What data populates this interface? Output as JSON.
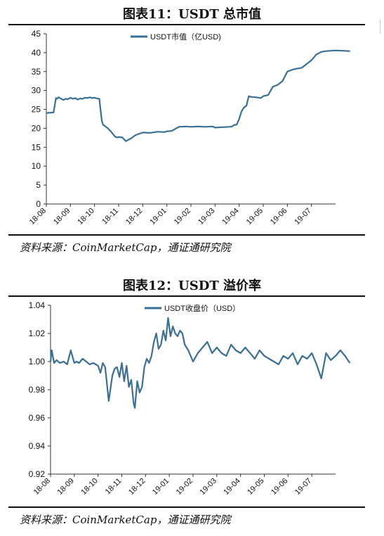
{
  "figures": [
    {
      "title": "图表11：USDT 总市值",
      "source": "资料来源：CoinMarketCap，通证通研究院"
    },
    {
      "title": "图表12：USDT 溢价率",
      "source": "资料来源：CoinMarketCap，通证通研究院"
    }
  ],
  "chart_data": [
    {
      "type": "line",
      "title": "图表11：USDT 总市值",
      "xlabel": "",
      "ylabel": "",
      "ylim": [
        0,
        45
      ],
      "yticks": [
        0,
        5,
        10,
        15,
        20,
        25,
        30,
        35,
        40,
        45
      ],
      "xticks": [
        "18-08",
        "18-09",
        "18-10",
        "18-11",
        "18-12",
        "19-01",
        "19-02",
        "19-03",
        "19-04",
        "19-05",
        "19-06",
        "19-07"
      ],
      "legend_position": "top-center",
      "grid": false,
      "series": [
        {
          "name": "USDT市值（亿USD)",
          "color": "#3a6f96",
          "x": [
            0,
            0.1,
            0.3,
            0.4,
            0.45,
            0.5,
            0.6,
            0.7,
            0.8,
            0.9,
            1.0,
            1.1,
            1.2,
            1.3,
            1.4,
            1.5,
            1.6,
            1.7,
            1.8,
            1.9,
            2.0,
            2.1,
            2.2,
            2.3,
            2.35,
            2.45,
            2.55,
            2.7,
            2.85,
            2.95,
            3.0,
            3.15,
            3.3,
            3.5,
            3.7,
            4.0,
            4.3,
            4.6,
            4.9,
            5.0,
            5.2,
            5.5,
            5.8,
            6.0,
            6.3,
            6.6,
            6.9,
            7.0,
            7.3,
            7.6,
            7.7,
            7.8,
            7.9,
            8.0,
            8.1,
            8.2,
            8.3,
            8.4,
            8.5,
            8.7,
            8.9,
            9.0,
            9.2,
            9.4,
            9.6,
            9.8,
            10.0,
            10.2,
            10.4,
            10.6,
            10.8,
            11.0,
            11.2,
            11.4,
            11.6,
            11.8,
            12.0,
            12.3,
            12.6
          ],
          "y": [
            24.0,
            24.1,
            24.2,
            28.0,
            27.8,
            28.2,
            27.9,
            27.5,
            27.8,
            27.7,
            28.1,
            27.8,
            28.0,
            27.6,
            27.9,
            27.8,
            28.1,
            28.0,
            28.2,
            28.0,
            28.1,
            27.9,
            27.8,
            22.0,
            21.0,
            20.5,
            20.0,
            19.0,
            17.8,
            17.6,
            17.7,
            17.6,
            16.6,
            17.3,
            18.2,
            18.9,
            18.8,
            19.1,
            19.0,
            19.2,
            19.3,
            20.4,
            20.5,
            20.4,
            20.5,
            20.4,
            20.5,
            20.2,
            20.3,
            20.4,
            20.5,
            20.9,
            21.0,
            22.5,
            24.5,
            25.5,
            26.0,
            28.5,
            28.3,
            28.2,
            28.0,
            28.5,
            28.8,
            31.0,
            31.5,
            32.5,
            35.0,
            35.5,
            35.8,
            36.0,
            37.0,
            38.0,
            39.5,
            40.2,
            40.4,
            40.5,
            40.6,
            40.5,
            40.4
          ]
        }
      ]
    },
    {
      "type": "line",
      "title": "图表12：USDT 溢价率",
      "xlabel": "",
      "ylabel": "",
      "ylim": [
        0.92,
        1.04
      ],
      "yticks": [
        "0.92",
        "0.94",
        "0.96",
        "0.98",
        "1.00",
        "1.02",
        "1.04"
      ],
      "xticks": [
        "18-08",
        "18-09",
        "18-10",
        "18-11",
        "18-12",
        "19-01",
        "19-02",
        "19-03",
        "19-04",
        "19-05",
        "19-06",
        "19-07"
      ],
      "legend_position": "top-center",
      "grid": false,
      "series": [
        {
          "name": "USDT收盘价（USD）",
          "color": "#3a6f96",
          "x": [
            0,
            0.05,
            0.15,
            0.25,
            0.4,
            0.55,
            0.7,
            0.85,
            1.0,
            1.1,
            1.2,
            1.35,
            1.5,
            1.65,
            1.8,
            2.0,
            2.1,
            2.2,
            2.3,
            2.45,
            2.6,
            2.7,
            2.8,
            2.9,
            3.0,
            3.1,
            3.2,
            3.3,
            3.4,
            3.5,
            3.55,
            3.65,
            3.75,
            3.85,
            3.95,
            4.05,
            4.15,
            4.25,
            4.35,
            4.45,
            4.55,
            4.65,
            4.75,
            4.85,
            4.95,
            5.05,
            5.15,
            5.25,
            5.35,
            5.45,
            5.55,
            5.65,
            5.8,
            6.0,
            6.2,
            6.4,
            6.6,
            6.8,
            7.0,
            7.2,
            7.4,
            7.6,
            7.8,
            8.0,
            8.2,
            8.4,
            8.6,
            8.8,
            9.0,
            9.2,
            9.4,
            9.6,
            9.8,
            10.0,
            10.2,
            10.4,
            10.6,
            10.8,
            11.0,
            11.2,
            11.4,
            11.6,
            11.8,
            12.0,
            12.2,
            12.4,
            12.6
          ],
          "y": [
            1.0,
            1.008,
            0.999,
            1.001,
            0.999,
            1.0,
            0.998,
            1.008,
            0.999,
            1.0,
            0.999,
            1.002,
            1.0,
            0.998,
            0.999,
            0.997,
            0.992,
            0.999,
            0.996,
            0.972,
            0.99,
            0.995,
            0.996,
            0.989,
            0.999,
            0.986,
            0.997,
            0.982,
            0.987,
            0.97,
            0.967,
            0.986,
            0.978,
            0.982,
            0.996,
            1.002,
            0.999,
            1.004,
            1.014,
            1.02,
            1.009,
            1.012,
            1.022,
            1.015,
            1.031,
            1.018,
            1.025,
            1.02,
            1.018,
            1.022,
            1.02,
            1.012,
            1.008,
            1.0,
            1.006,
            1.01,
            1.014,
            1.006,
            1.01,
            1.006,
            1.004,
            1.012,
            1.008,
            1.006,
            1.01,
            1.006,
            1.002,
            1.008,
            1.004,
            1.002,
            1.0,
            0.998,
            1.004,
            1.002,
            1.006,
            0.998,
            1.004,
            1.002,
            1.006,
            0.998,
            0.988,
            1.006,
            1.001,
            1.004,
            1.008,
            1.004,
            0.999
          ]
        }
      ]
    }
  ]
}
